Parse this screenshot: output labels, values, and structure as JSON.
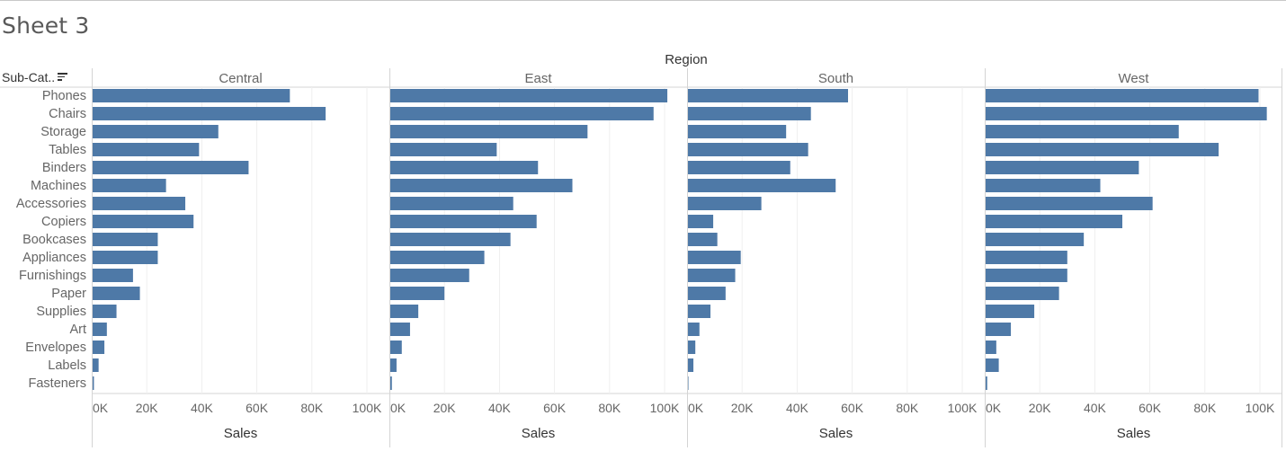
{
  "sheet": {
    "title": "Sheet 3"
  },
  "columns_header": "Region",
  "rows_header": {
    "label": "Sub-Cat..",
    "icon": "sort-descending-icon"
  },
  "chart_data": {
    "type": "bar",
    "orientation": "horizontal",
    "bar_color": "#4e79a7",
    "title": "",
    "column_field": "Region",
    "row_field": "Sub-Cat..",
    "panels": [
      "Central",
      "East",
      "South",
      "West"
    ],
    "categories": [
      "Phones",
      "Chairs",
      "Storage",
      "Tables",
      "Binders",
      "Machines",
      "Accessories",
      "Copiers",
      "Bookcases",
      "Appliances",
      "Furnishings",
      "Paper",
      "Supplies",
      "Art",
      "Envelopes",
      "Labels",
      "Fasteners"
    ],
    "series": [
      {
        "name": "Central",
        "values": [
          72000,
          85000,
          46000,
          39000,
          57000,
          27000,
          34000,
          37000,
          24000,
          24000,
          15000,
          17500,
          9000,
          5500,
          4600,
          2500,
          800
        ]
      },
      {
        "name": "East",
        "values": [
          101000,
          96000,
          72000,
          39000,
          54000,
          66500,
          45000,
          53500,
          44000,
          34500,
          29000,
          20000,
          10500,
          7500,
          4500,
          2600,
          900
        ]
      },
      {
        "name": "South",
        "values": [
          58500,
          45000,
          36000,
          44000,
          37500,
          54000,
          27000,
          9500,
          11000,
          19500,
          17500,
          14000,
          8500,
          4500,
          3000,
          2300,
          500
        ]
      },
      {
        "name": "West",
        "values": [
          99500,
          102500,
          70500,
          85000,
          56000,
          42000,
          61000,
          50000,
          36000,
          30000,
          30000,
          27000,
          18000,
          9500,
          4200,
          5100,
          900
        ]
      }
    ],
    "x_axis": {
      "label": "Sales",
      "ticks": [
        "0K",
        "20K",
        "40K",
        "60K",
        "80K",
        "100K"
      ],
      "tick_values": [
        0,
        20000,
        40000,
        60000,
        80000,
        100000
      ],
      "xlim": [
        0,
        106000
      ]
    },
    "grid": true
  }
}
